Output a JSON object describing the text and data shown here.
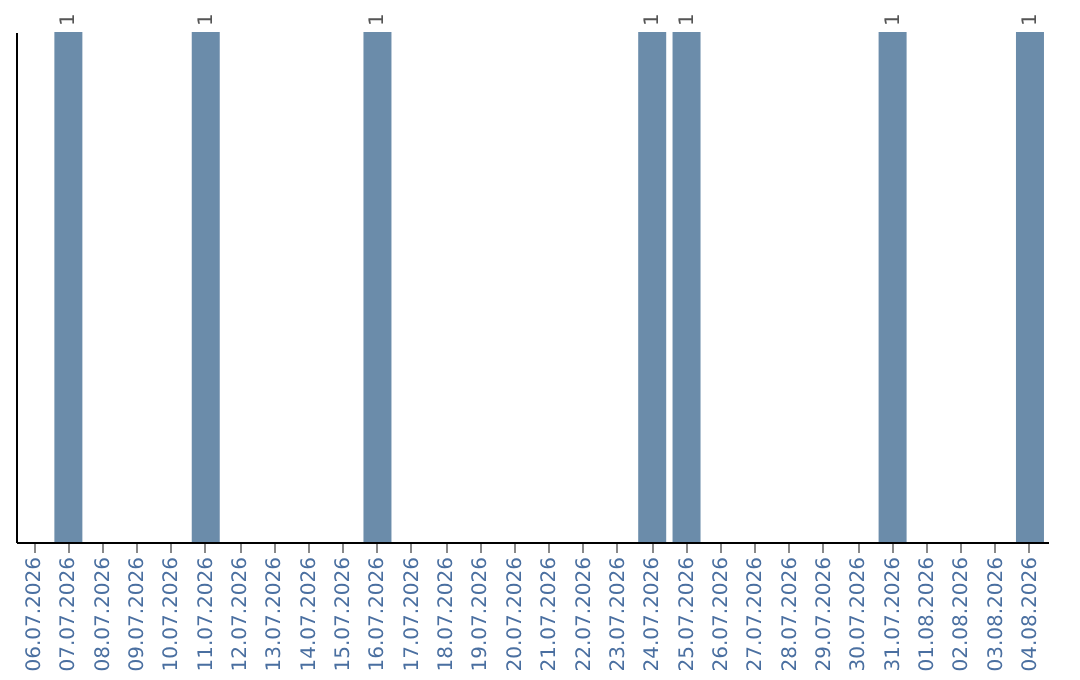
{
  "chart_data": {
    "type": "bar",
    "categories": [
      "06.07.2026",
      "07.07.2026",
      "08.07.2026",
      "09.07.2026",
      "10.07.2026",
      "11.07.2026",
      "12.07.2026",
      "13.07.2026",
      "14.07.2026",
      "15.07.2026",
      "16.07.2026",
      "17.07.2026",
      "18.07.2026",
      "19.07.2026",
      "20.07.2026",
      "21.07.2026",
      "22.07.2026",
      "23.07.2026",
      "24.07.2026",
      "25.07.2026",
      "26.07.2026",
      "27.07.2026",
      "28.07.2026",
      "29.07.2026",
      "30.07.2026",
      "31.07.2026",
      "01.08.2026",
      "02.08.2026",
      "03.08.2026",
      "04.08.2026"
    ],
    "values": [
      0,
      1,
      0,
      0,
      0,
      1,
      0,
      0,
      0,
      0,
      1,
      0,
      0,
      0,
      0,
      0,
      0,
      0,
      1,
      1,
      0,
      0,
      0,
      0,
      0,
      1,
      0,
      0,
      0,
      1
    ],
    "value_labels": [
      null,
      "1",
      null,
      null,
      null,
      "1",
      null,
      null,
      null,
      null,
      "1",
      null,
      null,
      null,
      null,
      null,
      null,
      null,
      "1",
      "1",
      null,
      null,
      null,
      null,
      null,
      "1",
      null,
      null,
      null,
      "1"
    ],
    "color": "#6b8caa",
    "ylim": [
      0,
      1
    ],
    "tick_labels": "x",
    "grid": false
  }
}
